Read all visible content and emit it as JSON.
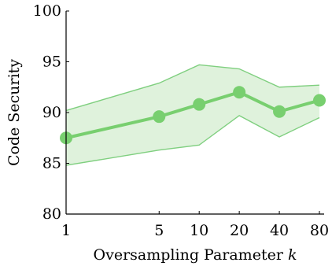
{
  "chart_data": {
    "type": "line",
    "xlabel_text": "Oversampling Parameter ",
    "xlabel_var": "k",
    "ylabel": "Code Security",
    "x_scale": "log",
    "x": [
      1,
      5,
      10,
      20,
      40,
      80
    ],
    "x_tick_labels": [
      "1",
      "5",
      "10",
      "20",
      "40",
      "80"
    ],
    "y_ticks": [
      80,
      85,
      90,
      95,
      100
    ],
    "ylim": [
      80,
      100
    ],
    "series": [
      {
        "values": [
          87.5,
          89.6,
          90.8,
          92.0,
          90.1,
          91.2
        ],
        "upper": [
          90.2,
          92.9,
          94.7,
          94.3,
          92.5,
          92.7
        ],
        "lower": [
          84.8,
          86.3,
          86.8,
          89.7,
          87.6,
          89.5
        ],
        "color": "#78cf6f",
        "band_color": "#dff2dc"
      }
    ],
    "grid": false
  }
}
